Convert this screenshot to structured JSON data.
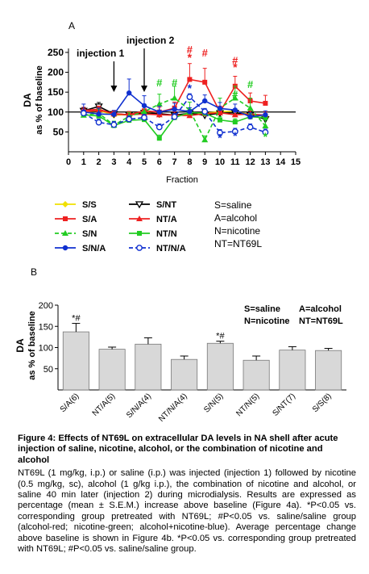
{
  "chart_data": [
    {
      "type": "line",
      "panel_label": "A",
      "ylabel_line1": "DA",
      "ylabel_line2": "as % of baseline",
      "xlabel": "Fraction",
      "x_ticks": [
        0,
        1,
        2,
        3,
        4,
        5,
        6,
        7,
        8,
        9,
        10,
        11,
        12,
        13,
        14,
        15
      ],
      "y_ticks": [
        50,
        100,
        150,
        200,
        250
      ],
      "xlim": [
        0,
        15
      ],
      "ylim": [
        0,
        260
      ],
      "baseline": 100,
      "annotations": [
        {
          "text": "injection 1",
          "x": 3
        },
        {
          "text": "injection 2",
          "x": 5
        }
      ],
      "x": [
        1,
        2,
        3,
        4,
        5,
        6,
        7,
        8,
        9,
        10,
        11,
        12,
        13
      ],
      "series": [
        {
          "name": "S/S",
          "color": "#f0e000",
          "marker": "diamond",
          "dashed": false,
          "values": [
            100,
            104,
            92,
            94,
            101,
            93,
            93,
            93,
            97,
            101,
            102,
            93,
            90
          ],
          "errors": [
            6,
            6,
            6,
            6,
            6,
            6,
            6,
            6,
            6,
            6,
            6,
            6,
            6
          ]
        },
        {
          "name": "S/NT",
          "color": "#000000",
          "marker": "tri-down",
          "dashed": false,
          "values": [
            103,
            114,
            95,
            93,
            98,
            96,
            92,
            97,
            92,
            97,
            98,
            93,
            82
          ],
          "errors": [
            8,
            10,
            8,
            8,
            8,
            8,
            8,
            8,
            8,
            8,
            8,
            8,
            8
          ]
        },
        {
          "name": "S/A",
          "color": "#ee2020",
          "marker": "square",
          "dashed": false,
          "values": [
            100,
            105,
            96,
            93,
            103,
            100,
            110,
            182,
            175,
            100,
            165,
            128,
            122
          ],
          "errors": [
            8,
            8,
            8,
            8,
            10,
            12,
            15,
            40,
            35,
            15,
            25,
            20,
            20
          ]
        },
        {
          "name": "NT/A",
          "color": "#ee2020",
          "marker": "triangle",
          "dashed": false,
          "values": [
            104,
            107,
            95,
            93,
            95,
            93,
            92,
            91,
            96,
            98,
            93,
            95,
            92
          ],
          "errors": [
            8,
            8,
            8,
            8,
            8,
            8,
            8,
            8,
            8,
            8,
            8,
            8,
            8
          ]
        },
        {
          "name": "S/N",
          "color": "#22cc22",
          "marker": "triangle",
          "dashed": true,
          "values": [
            92,
            97,
            67,
            89,
            101,
            120,
            135,
            105,
            30,
            110,
            135,
            110,
            65
          ],
          "errors": [
            10,
            10,
            10,
            10,
            15,
            25,
            30,
            20,
            10,
            25,
            30,
            25,
            15
          ]
        },
        {
          "name": "NT/N",
          "color": "#22cc22",
          "marker": "square",
          "dashed": false,
          "values": [
            93,
            90,
            66,
            79,
            81,
            34,
            86,
            99,
            97,
            80,
            75,
            88,
            86
          ],
          "errors": [
            8,
            8,
            8,
            8,
            8,
            8,
            8,
            8,
            8,
            8,
            8,
            8,
            8
          ]
        },
        {
          "name": "S/N/A",
          "color": "#1030d0",
          "marker": "circle",
          "dashed": false,
          "values": [
            100,
            95,
            94,
            148,
            116,
            100,
            107,
            101,
            128,
            109,
            105,
            88,
            93
          ],
          "errors": [
            20,
            15,
            10,
            35,
            25,
            15,
            15,
            10,
            15,
            15,
            15,
            10,
            10
          ]
        },
        {
          "name": "NT/N/A",
          "color": "#1030d0",
          "marker": "open-circle",
          "dashed": true,
          "values": [
            97,
            74,
            68,
            82,
            86,
            62,
            88,
            138,
            101,
            48,
            51,
            62,
            49
          ],
          "errors": [
            8,
            8,
            8,
            8,
            8,
            8,
            8,
            8,
            8,
            8,
            8,
            8,
            8
          ]
        }
      ],
      "sig_marks": [
        {
          "x": 6,
          "y": 165,
          "text": "#",
          "color": "#22cc22"
        },
        {
          "x": 7,
          "y": 165,
          "text": "#",
          "color": "#22cc22"
        },
        {
          "x": 8,
          "y": 248,
          "text": "#",
          "color": "#ee2020"
        },
        {
          "x": 8,
          "y": 228,
          "text": "*",
          "color": "#ee2020"
        },
        {
          "x": 9,
          "y": 240,
          "text": "#",
          "color": "#ee2020"
        },
        {
          "x": 11,
          "y": 220,
          "text": "#",
          "color": "#ee2020"
        },
        {
          "x": 11,
          "y": 203,
          "text": "*",
          "color": "#ee2020"
        },
        {
          "x": 11,
          "y": 135,
          "text": "#",
          "color": "#22cc22"
        },
        {
          "x": 12,
          "y": 160,
          "text": "#",
          "color": "#22cc22"
        },
        {
          "x": 6,
          "y": 20,
          "text": "*",
          "color": "#22cc22"
        },
        {
          "x": 13,
          "y": 28,
          "text": "*",
          "color": "#22cc22"
        },
        {
          "x": 8,
          "y": 150,
          "text": "*",
          "color": "#1030d0"
        },
        {
          "x": 10,
          "y": 25,
          "text": "*",
          "color": "#1030d0"
        },
        {
          "x": 11,
          "y": 30,
          "text": "*",
          "color": "#1030d0"
        }
      ],
      "legend_order": [
        "S/S",
        "S/NT",
        "S/A",
        "NT/A",
        "S/N",
        "NT/N",
        "S/N/A",
        "NT/N/A"
      ],
      "abbrev_legend": [
        "S=saline",
        "A=alcohol",
        "N=nicotine",
        "NT=NT69L"
      ]
    },
    {
      "type": "bar",
      "panel_label": "B",
      "ylabel_line1": "DA",
      "ylabel_line2": "as % of baseline",
      "y_ticks": [
        50,
        100,
        150,
        200
      ],
      "ylim": [
        0,
        200
      ],
      "categories": [
        "S/A(6)",
        "NT/A(5)",
        "S/N/A(4)",
        "NT/N/A(4)",
        "S/N(5)",
        "NT/N(5)",
        "S/NT(7)",
        "S/S(8)"
      ],
      "values": [
        137,
        96,
        108,
        72,
        110,
        70,
        94,
        93
      ],
      "errors": [
        20,
        5,
        15,
        8,
        5,
        10,
        8,
        5
      ],
      "bar_color": "#d8d8d8",
      "bar_marks": [
        "*#",
        "",
        "",
        "",
        "*#",
        "",
        "",
        ""
      ],
      "abbrev_legend": [
        "S=saline",
        "A=alcohol",
        "N=nicotine",
        "NT=NT69L"
      ]
    }
  ],
  "caption": {
    "title": "Figure 4: Effects of NT69L on extracellular DA levels in NA shell after acute injection of saline, nicotine, alcohol, or the combination of nicotine and alcohol",
    "body": "NT69L (1 mg/kg, i.p.) or saline (i.p.) was injected (injection 1) followed by nicotine (0.5 mg/kg, sc), alcohol (1 g/kg i.p.), the combination of nicotine and alcohol, or saline 40 min later (injection 2) during microdialysis. Results are expressed as percentage (mean ± S.E.M.) increase above baseline (Figure 4a). *P<0.05 vs. corresponding group pretreated with NT69L; #P<0.05 vs. saline/saline group (alcohol-red; nicotine-green; alcohol+nicotine-blue). Average percentage change above baseline is shown in Figure 4b. *P<0.05 vs. corresponding group pretreated with NT69L; #P<0.05 vs. saline/saline group."
  }
}
